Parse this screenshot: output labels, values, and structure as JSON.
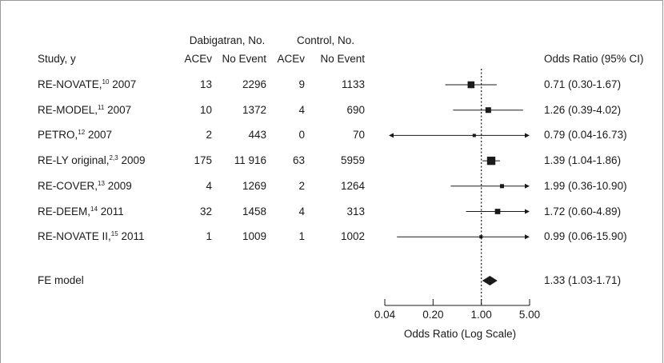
{
  "chart_data": {
    "type": "forest",
    "title": "",
    "column_groups": [
      {
        "label": "Dabigatran, No.",
        "columns": [
          "ACEv",
          "No Event"
        ]
      },
      {
        "label": "Control, No.",
        "columns": [
          "ACEv",
          "No Event"
        ]
      }
    ],
    "study_header": "Study, y",
    "or_header": "Odds Ratio (95% CI)",
    "studies": [
      {
        "name": "RE-NOVATE,",
        "ref": "10",
        "year": "2007",
        "dab_acev": "13",
        "dab_noevent": "2296",
        "ctl_acev": "9",
        "ctl_noevent": "1133",
        "or_text": "0.71 (0.30-1.67)",
        "or": 0.71,
        "lo": 0.3,
        "hi": 1.67,
        "weight": 0.6
      },
      {
        "name": "RE-MODEL,",
        "ref": "11",
        "year": "2007",
        "dab_acev": "10",
        "dab_noevent": "1372",
        "ctl_acev": "4",
        "ctl_noevent": "690",
        "or_text": "1.26 (0.39-4.02)",
        "or": 1.26,
        "lo": 0.39,
        "hi": 4.02,
        "weight": 0.35
      },
      {
        "name": "PETRO,",
        "ref": "12",
        "year": "2007",
        "dab_acev": "2",
        "dab_noevent": "443",
        "ctl_acev": "0",
        "ctl_noevent": "70",
        "or_text": "0.79 (0.04-16.73)",
        "or": 0.79,
        "lo": 0.04,
        "hi": 16.73,
        "weight": 0.05
      },
      {
        "name": "RE-LY original,",
        "ref": "2,3",
        "year": "2009",
        "dab_acev": "175",
        "dab_noevent": "11 916",
        "ctl_acev": "63",
        "ctl_noevent": "5959",
        "or_text": "1.39 (1.04-1.86)",
        "or": 1.39,
        "lo": 1.04,
        "hi": 1.86,
        "weight": 1.0
      },
      {
        "name": "RE-COVER,",
        "ref": "13",
        "year": "2009",
        "dab_acev": "4",
        "dab_noevent": "1269",
        "ctl_acev": "2",
        "ctl_noevent": "1264",
        "or_text": "1.99 (0.36-10.90)",
        "or": 1.99,
        "lo": 0.36,
        "hi": 10.9,
        "weight": 0.12
      },
      {
        "name": "RE-DEEM,",
        "ref": "14",
        "year": "2011",
        "dab_acev": "32",
        "dab_noevent": "1458",
        "ctl_acev": "4",
        "ctl_noevent": "313",
        "or_text": "1.72 (0.60-4.89)",
        "or": 1.72,
        "lo": 0.6,
        "hi": 4.89,
        "weight": 0.3
      },
      {
        "name": "RE-NOVATE II,",
        "ref": "15",
        "year": "2011",
        "dab_acev": "1",
        "dab_noevent": "1009",
        "ctl_acev": "1",
        "ctl_noevent": "1002",
        "or_text": "0.99 (0.06-15.90)",
        "or": 0.99,
        "lo": 0.06,
        "hi": 15.9,
        "weight": 0.05
      }
    ],
    "summary": {
      "name": "FE model",
      "or_text": "1.33 (1.03-1.71)",
      "or": 1.33,
      "lo": 1.03,
      "hi": 1.71
    },
    "x_axis": {
      "label": "Odds Ratio (Log Scale)",
      "scale": "log",
      "range": [
        0.04,
        5.0
      ],
      "ticks": [
        0.04,
        0.2,
        1.0,
        5.0
      ],
      "tick_labels": [
        "0.04",
        "0.20",
        "1.00",
        "5.00"
      ],
      "reference_line": 1.0
    },
    "colors": {
      "ink": "#1a1a1a",
      "frame": "#9a9a9a"
    }
  }
}
